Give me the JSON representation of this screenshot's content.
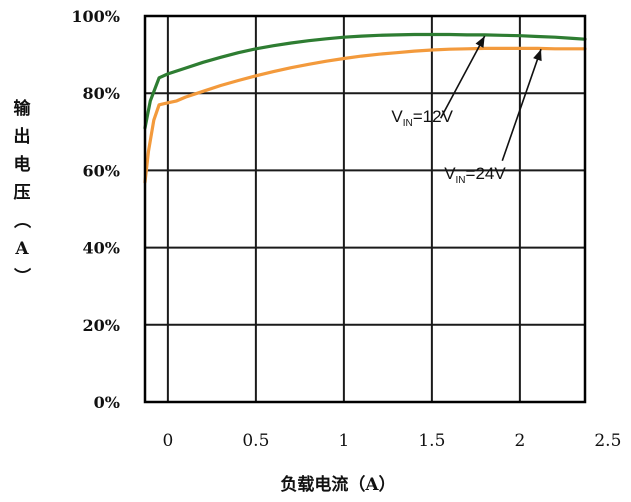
{
  "chart_data": {
    "type": "line",
    "xlabel": "负载电流（A）",
    "ylabel": "输出电压（A）",
    "xlim": [
      -0.13,
      2.37
    ],
    "ylim": [
      0,
      100
    ],
    "x_ticks": [
      0,
      0.5,
      1,
      1.5,
      2,
      2.5
    ],
    "x_tick_labels": [
      "0",
      "0.5",
      "1",
      "1.5",
      "2",
      "2.5"
    ],
    "y_ticks": [
      0,
      20,
      40,
      60,
      80,
      100
    ],
    "y_tick_labels": [
      "0%",
      "20%",
      "40%",
      "60%",
      "80%",
      "100%"
    ],
    "grid": true,
    "series": [
      {
        "name": "V_IN=12V",
        "color": "#2e7d32",
        "x": [
          -0.13,
          -0.1,
          -0.05,
          0,
          0.1,
          0.2,
          0.3,
          0.4,
          0.5,
          0.6,
          0.7,
          0.8,
          0.9,
          1.0,
          1.1,
          1.2,
          1.3,
          1.4,
          1.5,
          1.6,
          1.7,
          1.8,
          1.9,
          2.0,
          2.1,
          2.2,
          2.3,
          2.37
        ],
        "y": [
          71,
          78,
          84,
          85,
          86.5,
          88,
          89.3,
          90.5,
          91.5,
          92.3,
          93,
          93.6,
          94.1,
          94.5,
          94.8,
          95,
          95.1,
          95.2,
          95.2,
          95.2,
          95.1,
          95.1,
          95,
          94.9,
          94.7,
          94.5,
          94.2,
          94
        ]
      },
      {
        "name": "V_IN=24V",
        "color": "#f39a3c",
        "x": [
          -0.13,
          -0.11,
          -0.08,
          -0.05,
          0,
          0.05,
          0.1,
          0.2,
          0.3,
          0.4,
          0.5,
          0.6,
          0.7,
          0.8,
          0.9,
          1.0,
          1.1,
          1.2,
          1.3,
          1.4,
          1.5,
          1.6,
          1.7,
          1.8,
          1.9,
          2.0,
          2.1,
          2.2,
          2.3,
          2.37
        ],
        "y": [
          57,
          65,
          73,
          77,
          77.5,
          78,
          79,
          80.5,
          82,
          83.3,
          84.5,
          85.6,
          86.6,
          87.5,
          88.3,
          89,
          89.6,
          90.1,
          90.5,
          90.9,
          91.2,
          91.4,
          91.5,
          91.6,
          91.6,
          91.6,
          91.6,
          91.5,
          91.5,
          91.5
        ]
      }
    ],
    "annotations": [
      {
        "main": "V",
        "sub": "IN",
        "rest": "=12V",
        "text_at": [
          1.27,
          72.5
        ],
        "arrow_from": [
          1.55,
          73.5
        ],
        "arrow_to": [
          1.8,
          94.8
        ]
      },
      {
        "main": "V",
        "sub": "IN",
        "rest": "=24V",
        "text_at": [
          1.57,
          57.8
        ],
        "arrow_from": [
          1.9,
          62.5
        ],
        "arrow_to": [
          2.12,
          91.4
        ]
      }
    ]
  }
}
